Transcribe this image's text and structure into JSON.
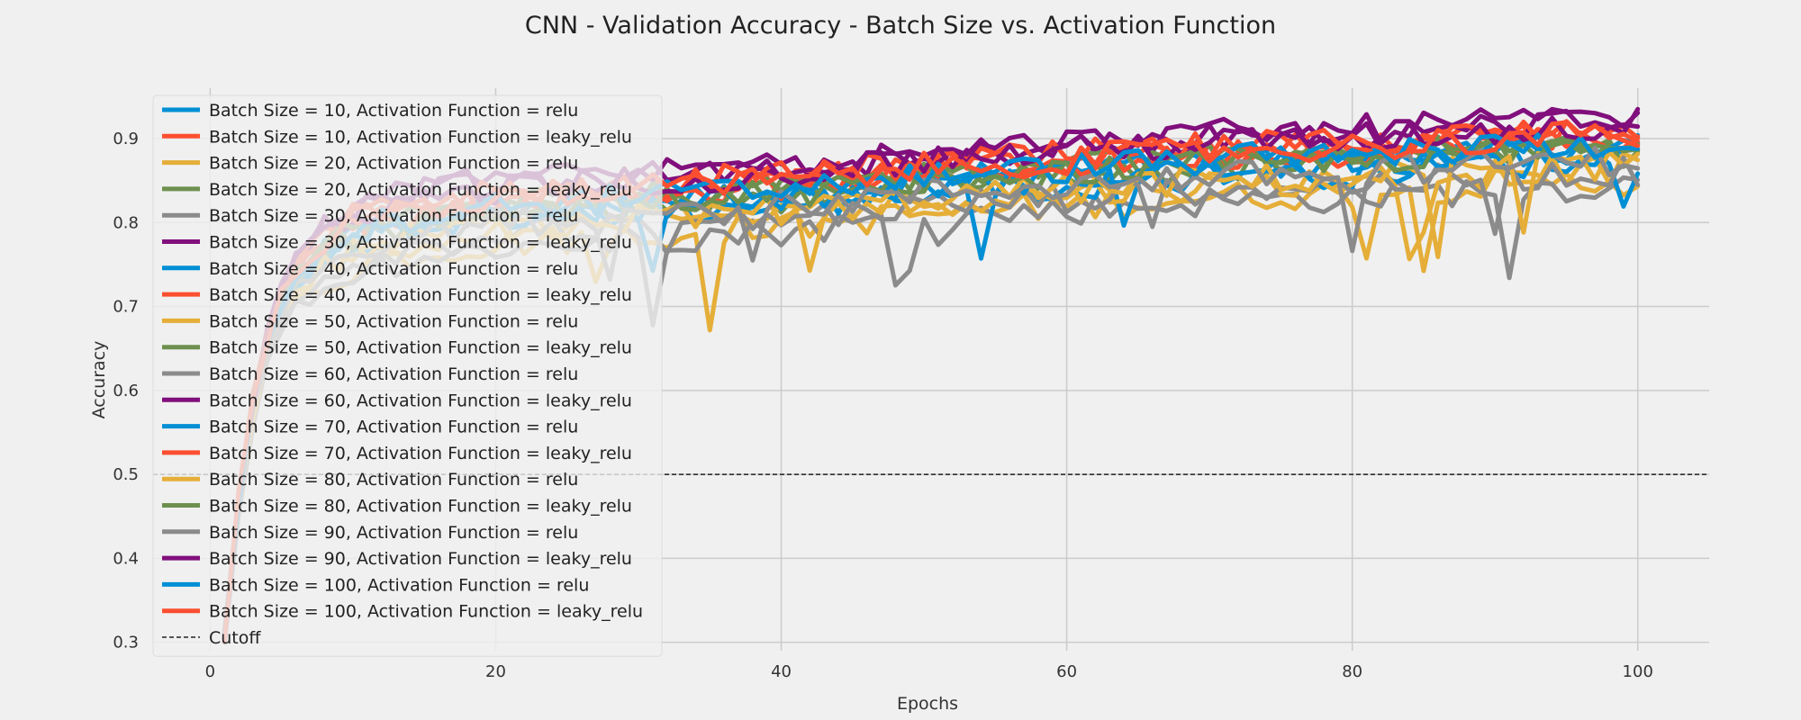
{
  "chart_data": {
    "type": "line",
    "title": "CNN      -      Validation Accuracy   -   Batch Size  vs. Activation Function",
    "xlabel": "Epochs",
    "ylabel": "Accuracy",
    "xlim": [
      -4,
      105
    ],
    "ylim": [
      0.29,
      0.96
    ],
    "xticks": [
      0,
      20,
      40,
      60,
      80,
      100
    ],
    "yticks": [
      0.3,
      0.4,
      0.5,
      0.6,
      0.7,
      0.8,
      0.9
    ],
    "grid": true,
    "legend_position": "upper-left",
    "cutoff": {
      "name": "Cutoff",
      "y": 0.5,
      "color": "#222222"
    },
    "palette": [
      "#008fd5",
      "#fc4f30",
      "#e5ae38",
      "#6d904f",
      "#8b8b8b",
      "#810f7c"
    ],
    "series_profile": {
      "epochs": [
        1,
        2,
        3,
        4,
        5,
        6,
        8,
        10,
        12,
        15,
        20,
        25,
        30,
        35,
        40,
        50,
        60,
        70,
        80,
        90,
        100
      ],
      "base": [
        0.3,
        0.47,
        0.58,
        0.65,
        0.7,
        0.73,
        0.76,
        0.78,
        0.79,
        0.8,
        0.81,
        0.815,
        0.82,
        0.825,
        0.83,
        0.845,
        0.855,
        0.865,
        0.87,
        0.88,
        0.885
      ]
    },
    "series": [
      {
        "name": "Batch Size =  10, Activation Function = relu",
        "color": "#008fd5",
        "offset": 0.005
      },
      {
        "name": "Batch Size =  10, Activation Function = leaky_relu",
        "color": "#fc4f30",
        "offset": 0.02
      },
      {
        "name": "Batch Size =  20, Activation Function = relu",
        "color": "#e5ae38",
        "offset": -0.035
      },
      {
        "name": "Batch Size =  20, Activation Function = leaky_relu",
        "color": "#6d904f",
        "offset": 0.0
      },
      {
        "name": "Batch Size =  30, Activation Function = relu",
        "color": "#8b8b8b",
        "offset": -0.04
      },
      {
        "name": "Batch Size =  30, Activation Function = leaky_relu",
        "color": "#810f7c",
        "offset": 0.035
      },
      {
        "name": "Batch Size =  40, Activation Function = relu",
        "color": "#008fd5",
        "offset": -0.01
      },
      {
        "name": "Batch Size =  40, Activation Function = leaky_relu",
        "color": "#fc4f30",
        "offset": 0.015
      },
      {
        "name": "Batch Size =  50, Activation Function = relu",
        "color": "#e5ae38",
        "offset": -0.02
      },
      {
        "name": "Batch Size =  50, Activation Function = leaky_relu",
        "color": "#6d904f",
        "offset": 0.01
      },
      {
        "name": "Batch Size =  60, Activation Function = relu",
        "color": "#8b8b8b",
        "offset": -0.025
      },
      {
        "name": "Batch Size =  60, Activation Function = leaky_relu",
        "color": "#810f7c",
        "offset": 0.04
      },
      {
        "name": "Batch Size =  70, Activation Function = relu",
        "color": "#008fd5",
        "offset": 0.0
      },
      {
        "name": "Batch Size =  70, Activation Function = leaky_relu",
        "color": "#fc4f30",
        "offset": 0.025
      },
      {
        "name": "Batch Size =  80, Activation Function = relu",
        "color": "#e5ae38",
        "offset": -0.015
      },
      {
        "name": "Batch Size =  80, Activation Function = leaky_relu",
        "color": "#6d904f",
        "offset": 0.005
      },
      {
        "name": "Batch Size =  90, Activation Function = relu",
        "color": "#8b8b8b",
        "offset": -0.01
      },
      {
        "name": "Batch Size =  90, Activation Function = leaky_relu",
        "color": "#810f7c",
        "offset": 0.03
      },
      {
        "name": "Batch Size = 100, Activation Function = relu",
        "color": "#008fd5",
        "offset": 0.01
      },
      {
        "name": "Batch Size = 100, Activation Function = leaky_relu",
        "color": "#fc4f30",
        "offset": 0.02
      }
    ]
  }
}
